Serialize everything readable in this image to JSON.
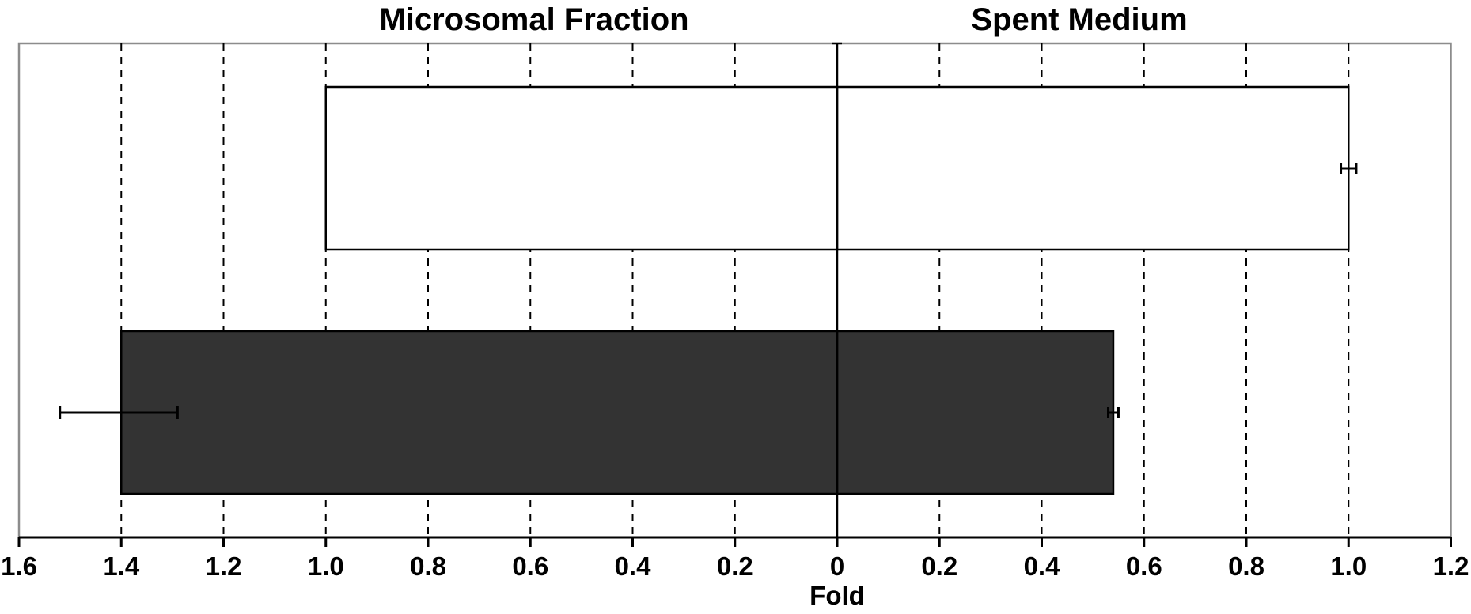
{
  "chart_data": {
    "type": "bar",
    "orientation": "horizontal",
    "panel_titles": [
      "Microsomal Fraction",
      "Spent Medium"
    ],
    "xlabel": "Fold",
    "xlim_left": [
      0,
      1.6
    ],
    "xlim_right": [
      0,
      1.2
    ],
    "tick_labels_left": [
      "1.6",
      "1.4",
      "1.2",
      "1.0",
      "0.8",
      "0.6",
      "0.4",
      "0.2"
    ],
    "tick_labels_right": [
      "0",
      "0.2",
      "0.4",
      "0.6",
      "0.8",
      "1.0",
      "1.2"
    ],
    "tick_values_left": [
      1.6,
      1.4,
      1.2,
      1.0,
      0.8,
      0.6,
      0.4,
      0.2
    ],
    "tick_values_right": [
      0,
      0.2,
      0.4,
      0.6,
      0.8,
      1.0,
      1.2
    ],
    "grid": "vertical dashed",
    "bars": [
      {
        "fill": "#ffffff",
        "microsomal_fraction": 1.0,
        "microsomal_error": null,
        "spent_medium": 1.0,
        "spent_medium_error": 0.015
      },
      {
        "fill": "#333333",
        "microsomal_fraction": 1.4,
        "microsomal_error": [
          1.29,
          1.52
        ],
        "spent_medium": 0.54,
        "spent_medium_error": 0.01
      }
    ]
  }
}
